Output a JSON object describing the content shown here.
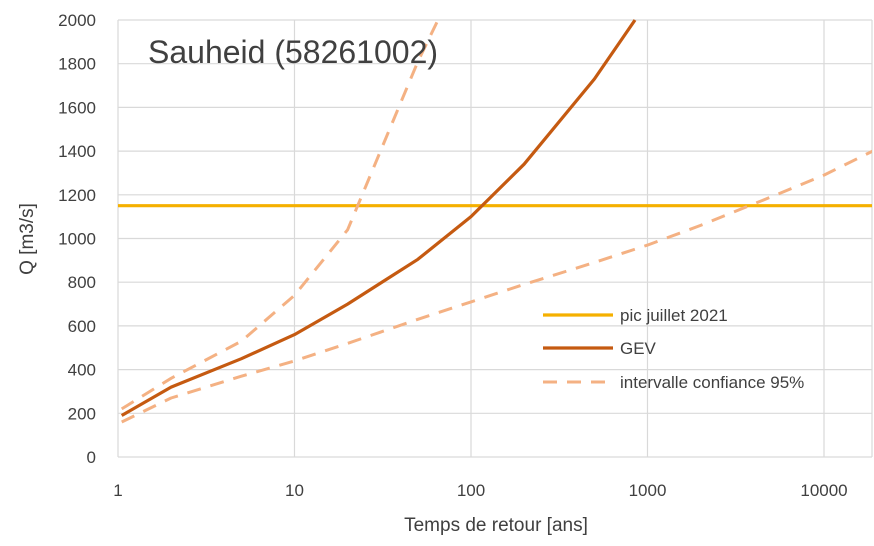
{
  "chart_data": {
    "type": "line",
    "title": "Sauheid (58261002)",
    "xlabel": "Temps de retour [ans]",
    "ylabel": "Q [m3/s]",
    "x_scale": "log",
    "xlim": [
      1,
      20000
    ],
    "ylim": [
      0,
      2000
    ],
    "x_ticks": [
      "1",
      "10",
      "100",
      "1000",
      "10000"
    ],
    "y_ticks": [
      "0",
      "200",
      "400",
      "600",
      "800",
      "1000",
      "1200",
      "1400",
      "1600",
      "1800",
      "2000"
    ],
    "grid": true,
    "legend_position": "right",
    "series": [
      {
        "name": "pic juillet 2021",
        "style": "solid",
        "color": "#F5B000",
        "points": [
          [
            1,
            1150
          ],
          [
            20000,
            1150
          ]
        ]
      },
      {
        "name": "GEV",
        "style": "solid",
        "color": "#C55A11",
        "points": [
          [
            1.05,
            190
          ],
          [
            2,
            320
          ],
          [
            5,
            450
          ],
          [
            10,
            560
          ],
          [
            20,
            700
          ],
          [
            50,
            905
          ],
          [
            100,
            1100
          ],
          [
            200,
            1340
          ],
          [
            500,
            1730
          ],
          [
            850,
            2000
          ]
        ]
      },
      {
        "name": "intervalle confiance 95%",
        "style": "dashed",
        "color": "#F4B183",
        "points": [
          [
            1.05,
            220
          ],
          [
            2,
            360
          ],
          [
            5,
            530
          ],
          [
            10,
            740
          ],
          [
            20,
            1040
          ],
          [
            50,
            1810
          ],
          [
            65,
            2000
          ]
        ]
      },
      {
        "name": "",
        "style": "dashed",
        "color": "#F4B183",
        "points": [
          [
            1.05,
            160
          ],
          [
            2,
            270
          ],
          [
            5,
            370
          ],
          [
            10,
            440
          ],
          [
            20,
            520
          ],
          [
            50,
            630
          ],
          [
            100,
            710
          ],
          [
            200,
            790
          ],
          [
            500,
            890
          ],
          [
            1000,
            970
          ],
          [
            2000,
            1060
          ],
          [
            5000,
            1190
          ],
          [
            10000,
            1290
          ],
          [
            20000,
            1410
          ]
        ]
      }
    ],
    "legend": [
      "pic juillet 2021",
      "GEV",
      "intervalle confiance 95%"
    ]
  }
}
